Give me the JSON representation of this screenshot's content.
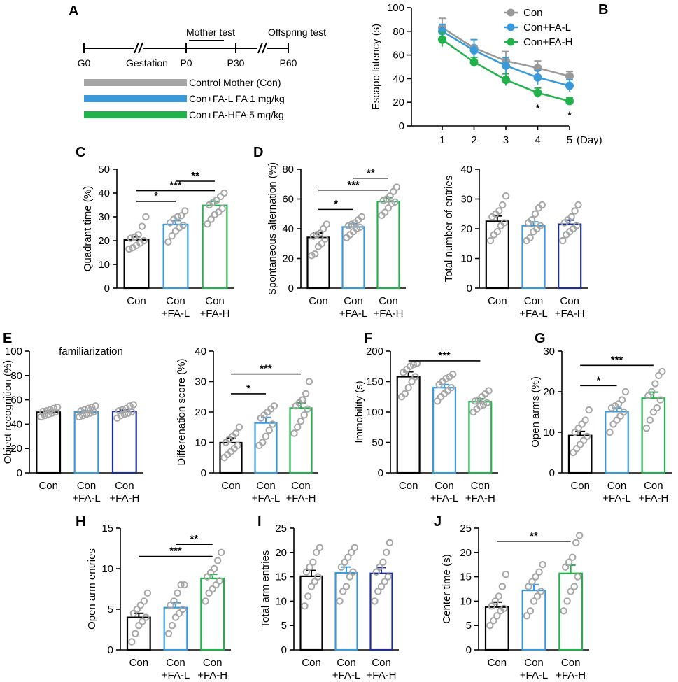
{
  "colors": {
    "con": "#999999",
    "low": "#3a9ad9",
    "high": "#22b24c",
    "dark": "#1a2f8f",
    "black": "#000000",
    "dots": "#a6a6a6"
  },
  "panelA": {
    "letter": "A",
    "events": [
      "Mother test",
      "Offspring test"
    ],
    "ticks": [
      "G0",
      "Gestation",
      "P0",
      "P30",
      "P60"
    ],
    "legend": [
      {
        "label": "Control Mother (Con)",
        "color": "#a6a6a6"
      },
      {
        "label": "Con+FA-L FA 1 mg/kg",
        "color": "#3a9ad9"
      },
      {
        "label": "Con+FA-HFA 5 mg/kg",
        "color": "#22b24c"
      }
    ]
  },
  "chart_data": [
    {
      "id": "B",
      "type": "line",
      "letter": "B",
      "ylabel": "Escape latency (s)",
      "ylim": [
        0,
        100
      ],
      "yticks": [
        0,
        20,
        40,
        60,
        80,
        100
      ],
      "x": [
        1,
        2,
        3,
        4,
        5
      ],
      "xticklabels": [
        "1",
        "2",
        "3",
        "4",
        "5"
      ],
      "xunit": "(Day)",
      "series": [
        {
          "name": "Con",
          "color": "#999999",
          "values": [
            83,
            66,
            55,
            49,
            42
          ],
          "err": [
            8,
            7,
            8,
            6,
            4
          ]
        },
        {
          "name": "Con+FA-L",
          "color": "#3a9ad9",
          "values": [
            80,
            64,
            51,
            41,
            34
          ],
          "err": [
            6,
            9,
            7,
            6,
            5
          ]
        },
        {
          "name": "Con+FA-H",
          "color": "#22b24c",
          "values": [
            73,
            54,
            39,
            28,
            21
          ],
          "err": [
            6,
            4,
            5,
            4,
            3
          ]
        }
      ],
      "sig": [
        {
          "x": 4,
          "text": "*"
        },
        {
          "x": 5,
          "text": "*"
        }
      ]
    },
    {
      "id": "C",
      "type": "bar",
      "letter": "C",
      "ylabel": "Quadrant time (%)",
      "ylim": [
        0,
        50
      ],
      "yticks": [
        0,
        10,
        20,
        30,
        40,
        50
      ],
      "categories": [
        [
          "Con"
        ],
        [
          "Con",
          "+FA-L"
        ],
        [
          "Con",
          "+FA-H"
        ]
      ],
      "values": [
        20.3,
        26.8,
        34.8
      ],
      "err": [
        1.3,
        1.6,
        1.7
      ],
      "colors": [
        "#000000",
        "#3a9ad9",
        "#22b24c"
      ],
      "points": [
        [
          16.5,
          17,
          18,
          19,
          20,
          21,
          21.5,
          22.5,
          26,
          30
        ],
        [
          19.5,
          22,
          24,
          25.5,
          26.5,
          27.5,
          29,
          30,
          30.5,
          32.5
        ],
        [
          27,
          29,
          31,
          32,
          33.5,
          35,
          36,
          37,
          38.5,
          40
        ]
      ],
      "sig": [
        {
          "a": 0,
          "b": 1,
          "y": 36.5,
          "text": "*"
        },
        {
          "a": 0,
          "b": 2,
          "y": 41,
          "text": "***"
        },
        {
          "a": 1,
          "b": 2,
          "y": 45,
          "text": "**"
        }
      ]
    },
    {
      "id": "D1",
      "type": "bar",
      "letter": "D",
      "ylabel": "Spontaneous alternation (%)",
      "ylim": [
        0,
        80
      ],
      "yticks": [
        0,
        20,
        40,
        60,
        80
      ],
      "categories": [
        [
          "Con"
        ],
        [
          "Con",
          "+FA-L"
        ],
        [
          "Con",
          "+FA-H"
        ]
      ],
      "values": [
        34.2,
        41.2,
        58.3
      ],
      "err": [
        3.0,
        2.2,
        2.4
      ],
      "colors": [
        "#000000",
        "#3a9ad9",
        "#22b24c"
      ],
      "points": [
        [
          22,
          23,
          28,
          30,
          33,
          35,
          36,
          37,
          40,
          43
        ],
        [
          34,
          36,
          38,
          40,
          41,
          42,
          43,
          44,
          46,
          48
        ],
        [
          49,
          51,
          54,
          57,
          58,
          59,
          60,
          62,
          65,
          68
        ]
      ],
      "sig": [
        {
          "a": 0,
          "b": 1,
          "y": 53,
          "text": "*"
        },
        {
          "a": 0,
          "b": 2,
          "y": 66,
          "text": "***"
        },
        {
          "a": 1,
          "b": 2,
          "y": 74,
          "text": "**"
        }
      ]
    },
    {
      "id": "D2",
      "type": "bar",
      "letter": "",
      "ylabel": "Total number of entries",
      "ylim": [
        0,
        40
      ],
      "yticks": [
        0,
        10,
        20,
        30,
        40
      ],
      "categories": [
        [
          "Con"
        ],
        [
          "Con",
          "+FA-L"
        ],
        [
          "Con",
          "+FA-H"
        ]
      ],
      "values": [
        22.5,
        21,
        21.5
      ],
      "err": [
        1.8,
        1.3,
        1.4
      ],
      "colors": [
        "#000000",
        "#3a9ad9",
        "#1a2f8f"
      ],
      "points": [
        [
          16,
          18,
          19,
          21,
          22,
          24,
          25,
          26,
          28,
          31
        ],
        [
          16,
          17,
          19,
          20,
          21,
          22,
          23,
          25,
          27,
          28
        ],
        [
          16,
          18,
          19,
          20,
          21,
          22,
          23,
          24,
          26,
          28
        ]
      ],
      "sig": []
    },
    {
      "id": "E1",
      "type": "bar",
      "letter": "E",
      "ylabel": "Object recognition  (%)",
      "ylim": [
        0,
        100
      ],
      "yticks": [
        0,
        20,
        40,
        60,
        80,
        100
      ],
      "title": "familiarization",
      "categories": [
        [
          "Con"
        ],
        [
          "Con",
          "+FA-L"
        ],
        [
          "Con",
          "+FA-H"
        ]
      ],
      "values": [
        49.8,
        50,
        50.5
      ],
      "err": [
        1.0,
        1.2,
        1.2
      ],
      "colors": [
        "#000000",
        "#3a9ad9",
        "#1a2f8f"
      ],
      "points": [
        [
          46,
          47,
          48,
          49,
          50,
          50.5,
          51,
          52,
          53,
          54
        ],
        [
          46,
          47,
          48,
          49,
          50,
          51,
          52,
          53,
          54,
          55
        ],
        [
          45,
          47,
          48,
          49,
          50,
          51,
          52,
          53,
          55,
          56
        ]
      ],
      "sig": []
    },
    {
      "id": "E2",
      "type": "bar",
      "letter": "",
      "ylabel": "Differenation score (%)",
      "ylim": [
        0,
        40
      ],
      "yticks": [
        0,
        10,
        20,
        30,
        40
      ],
      "categories": [
        [
          "Con"
        ],
        [
          "Con",
          "+FA-L"
        ],
        [
          "Con",
          "+FA-H"
        ]
      ],
      "values": [
        9.9,
        16.4,
        21.3
      ],
      "err": [
        1.5,
        1.8,
        1.7
      ],
      "colors": [
        "#000000",
        "#3a9ad9",
        "#22b24c"
      ],
      "points": [
        [
          5,
          6,
          7,
          8,
          9,
          10,
          11,
          12,
          13,
          15
        ],
        [
          9,
          10,
          12,
          14,
          16,
          18,
          19,
          20,
          21,
          22
        ],
        [
          13,
          15,
          17,
          19,
          21,
          22,
          23,
          24,
          26,
          30
        ]
      ],
      "sig": [
        {
          "a": 0,
          "b": 1,
          "y": 26,
          "text": "*"
        },
        {
          "a": 0,
          "b": 2,
          "y": 32.5,
          "text": "***"
        }
      ]
    },
    {
      "id": "F",
      "type": "bar",
      "letter": "F",
      "ylabel": "Immobility (s)",
      "ylim": [
        0,
        200
      ],
      "yticks": [
        0,
        50,
        100,
        150,
        200
      ],
      "categories": [
        [
          "Con"
        ],
        [
          "Con",
          "+FA-L"
        ],
        [
          "Con",
          "+FA-H"
        ]
      ],
      "values": [
        158,
        140,
        117
      ],
      "err": [
        8,
        5,
        5
      ],
      "colors": [
        "#000000",
        "#3a9ad9",
        "#22b24c"
      ],
      "points": [
        [
          125,
          130,
          140,
          150,
          158,
          165,
          170,
          175,
          178,
          180
        ],
        [
          118,
          125,
          130,
          135,
          140,
          145,
          150,
          155,
          158,
          162
        ],
        [
          100,
          105,
          110,
          112,
          115,
          118,
          120,
          125,
          130,
          135
        ]
      ],
      "sig": [
        {
          "a": 0,
          "b": 2,
          "y": 184,
          "text": "***"
        }
      ]
    },
    {
      "id": "G",
      "type": "bar",
      "letter": "G",
      "ylabel": "Open arms (%)",
      "ylim": [
        0,
        30
      ],
      "yticks": [
        0,
        10,
        20,
        30
      ],
      "categories": [
        [
          "Con"
        ],
        [
          "Con",
          "+FA-L"
        ],
        [
          "Con",
          "+FA-H"
        ]
      ],
      "values": [
        9.2,
        15.1,
        18.4
      ],
      "err": [
        1.0,
        0.9,
        1.5
      ],
      "colors": [
        "#000000",
        "#3a9ad9",
        "#22b24c"
      ],
      "points": [
        [
          5,
          6,
          7,
          8,
          9,
          10,
          11,
          12,
          13,
          15.5
        ],
        [
          10,
          12,
          13,
          14,
          15,
          16,
          16.5,
          17,
          18,
          20
        ],
        [
          11,
          13,
          15,
          16,
          18,
          19,
          20,
          22,
          24,
          25
        ]
      ],
      "sig": [
        {
          "a": 0,
          "b": 1,
          "y": 21.5,
          "text": "*"
        },
        {
          "a": 0,
          "b": 2,
          "y": 26.5,
          "text": "***"
        }
      ]
    },
    {
      "id": "H",
      "type": "bar",
      "letter": "H",
      "ylabel": "Open arm entries",
      "ylim": [
        0,
        15
      ],
      "yticks": [
        0,
        5,
        10,
        15
      ],
      "categories": [
        [
          "Con"
        ],
        [
          "Con",
          "+FA-L"
        ],
        [
          "Con",
          "+FA-H"
        ]
      ],
      "values": [
        4.0,
        5.2,
        8.8
      ],
      "err": [
        0.5,
        0.6,
        0.5
      ],
      "colors": [
        "#000000",
        "#3a9ad9",
        "#22b24c"
      ],
      "points": [
        [
          1,
          2,
          3,
          3.5,
          4,
          4.5,
          5,
          5.5,
          6,
          7
        ],
        [
          2,
          3,
          4,
          4.5,
          5,
          5.5,
          6,
          7,
          8,
          8
        ],
        [
          6,
          7,
          7.5,
          8,
          8.5,
          9,
          9.5,
          10,
          11,
          12
        ]
      ],
      "sig": [
        {
          "a": 0,
          "b": 2,
          "y": 11.5,
          "text": "***"
        },
        {
          "a": 1,
          "b": 2,
          "y": 13,
          "text": "**"
        }
      ]
    },
    {
      "id": "I",
      "type": "bar",
      "letter": "I",
      "ylabel": "Total arm entries",
      "ylim": [
        0,
        25
      ],
      "yticks": [
        0,
        5,
        10,
        15,
        20,
        25
      ],
      "categories": [
        [
          "Con"
        ],
        [
          "Con",
          "+FA-L"
        ],
        [
          "Con",
          "+FA-H"
        ]
      ],
      "values": [
        15.1,
        15.8,
        15.7
      ],
      "err": [
        1.2,
        1.2,
        1.2
      ],
      "colors": [
        "#000000",
        "#3a9ad9",
        "#1a2f8f"
      ],
      "points": [
        [
          9,
          11,
          13,
          14,
          15,
          16,
          17,
          18,
          20,
          21
        ],
        [
          10,
          12,
          13,
          15,
          16,
          17,
          18,
          19,
          20,
          21
        ],
        [
          10,
          12,
          13,
          14,
          15,
          16,
          17,
          18,
          20,
          22
        ]
      ],
      "sig": []
    },
    {
      "id": "J",
      "type": "bar",
      "letter": "J",
      "ylabel": "Center time (s)",
      "ylim": [
        0,
        25
      ],
      "yticks": [
        0,
        5,
        10,
        15,
        20,
        25
      ],
      "categories": [
        [
          "Con"
        ],
        [
          "Con",
          "+FA-L"
        ],
        [
          "Con",
          "+FA-H"
        ]
      ],
      "values": [
        8.8,
        12.2,
        15.7
      ],
      "err": [
        1.0,
        1.2,
        1.7
      ],
      "colors": [
        "#000000",
        "#3a9ad9",
        "#22b24c"
      ],
      "points": [
        [
          5,
          6,
          7,
          8,
          8.5,
          9,
          10,
          11,
          13,
          15.5
        ],
        [
          7,
          8,
          10,
          11,
          12,
          13,
          14,
          15,
          16,
          17.5
        ],
        [
          8,
          10,
          12,
          13,
          15,
          17,
          18,
          19,
          22,
          23.5
        ]
      ],
      "sig": [
        {
          "a": 0,
          "b": 2,
          "y": 22.3,
          "text": "**"
        }
      ]
    }
  ]
}
